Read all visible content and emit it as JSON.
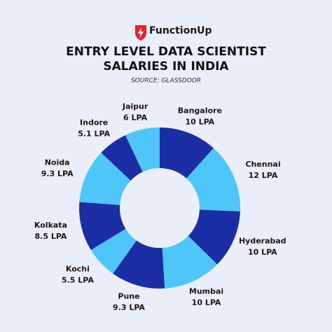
{
  "brand": "FunctionUp",
  "chart_data": {
    "type": "donut",
    "title": [
      "ENTRY LEVEL DATA SCIENTIST",
      "SALARIES IN INDIA"
    ],
    "subtitle": "SOURCE: GLASSDOOR",
    "categories": [
      "Bangalore",
      "Chennai",
      "Hyderabad",
      "Mumbai",
      "Pune",
      "Kochi",
      "Kolkata",
      "Noida",
      "Indore",
      "Jaipur"
    ],
    "values": [
      10,
      12,
      10,
      10,
      9.3,
      5.5,
      8.5,
      9.3,
      5.1,
      6
    ],
    "value_labels": [
      "10 LPA",
      "12 LPA",
      "10 LPA",
      "10 LPA",
      "9.3 LPA",
      "5.5 LPA",
      "8.5 LPA",
      "9.3 LPA",
      "5.1 LPA",
      "6 LPA"
    ],
    "colors": [
      "#1c2ea3",
      "#4ec6fa",
      "#1c2ea3",
      "#4ec6fa",
      "#1c2ea3",
      "#4ec6fa",
      "#1c2ea3",
      "#4ec6fa",
      "#1c2ea3",
      "#4ec6fa"
    ]
  }
}
